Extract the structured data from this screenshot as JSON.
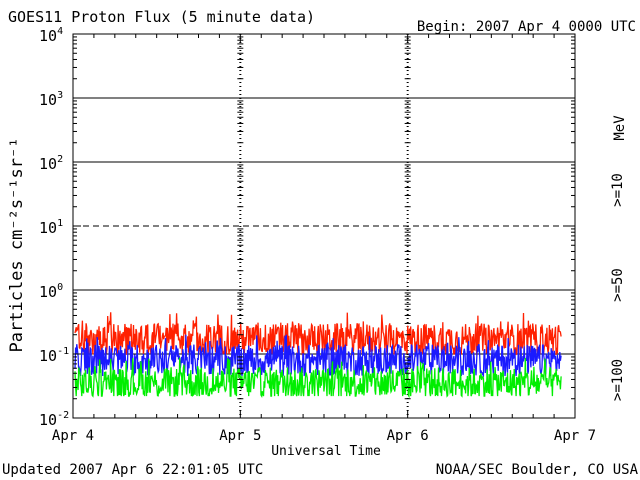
{
  "header": {
    "title": "GOES11 Proton Flux (5 minute data)",
    "begin": "Begin: 2007 Apr 4 0000 UTC"
  },
  "footer": {
    "updated": "Updated 2007 Apr  6 22:01:05 UTC",
    "credit": "NOAA/SEC Boulder, CO USA"
  },
  "chart_data": {
    "type": "line",
    "title": "GOES11 Proton Flux (5 minute data)",
    "xlabel": "Universal Time",
    "ylabel": "Particles cm⁻²s⁻¹sr⁻¹",
    "yscale": "log",
    "ylim": [
      0.01,
      10000
    ],
    "y_ticks": [
      {
        "base": "10",
        "exp": "-2",
        "value": 0.01
      },
      {
        "base": "10",
        "exp": "-1",
        "value": 0.1
      },
      {
        "base": "10",
        "exp": "0",
        "value": 1
      },
      {
        "base": "10",
        "exp": "1",
        "value": 10
      },
      {
        "base": "10",
        "exp": "2",
        "value": 100
      },
      {
        "base": "10",
        "exp": "3",
        "value": 1000
      },
      {
        "base": "10",
        "exp": "4",
        "value": 10000
      }
    ],
    "x_ticks": [
      "Apr 4",
      "Apr 5",
      "Apr 6",
      "Apr 7"
    ],
    "x_start": "2007-04-04 00:00 UTC",
    "x_end": "2007-04-07 00:00 UTC",
    "data_end": "2007-04-06 22:00 UTC",
    "reference_lines": [
      {
        "value": 10,
        "style": "dashed"
      },
      {
        "value": 1,
        "style": "solid"
      },
      {
        "value": 0.1,
        "style": "solid"
      },
      {
        "value": 100,
        "style": "solid"
      },
      {
        "value": 1000,
        "style": "solid"
      }
    ],
    "unit_label": "MeV",
    "series": [
      {
        "name": ">=10",
        "color": "#ff2000",
        "typical": 0.17,
        "min": 0.08,
        "max": 0.45
      },
      {
        "name": ">=50",
        "color": "#1a1aff",
        "typical": 0.08,
        "min": 0.035,
        "max": 0.2
      },
      {
        "name": ">=100",
        "color": "#00ee00",
        "typical": 0.035,
        "min": 0.022,
        "max": 0.09
      }
    ]
  }
}
